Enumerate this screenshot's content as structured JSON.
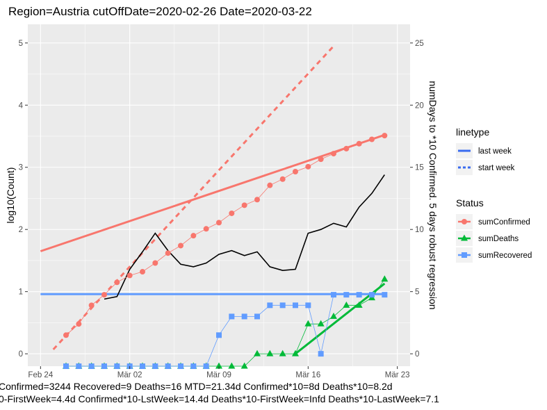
{
  "chart_data": {
    "type": "line",
    "title": "Region=Austria cutOffDate=2020-02-26 Date=2020-03-22",
    "ylabel": "log10(Count)",
    "y2label": "numDays to *10 Confirmed. 5 days robust regression",
    "ylim": [
      -0.2,
      5.3
    ],
    "y2lim": [
      0,
      25
    ],
    "yticks": [
      "0",
      "1",
      "2",
      "3",
      "4",
      "5"
    ],
    "y2ticks": [
      "0",
      "5",
      "10",
      "15",
      "20",
      "25"
    ],
    "xticks": [
      {
        "date": "2020-02-24",
        "label": "Feb 24"
      },
      {
        "date": "2020-03-02",
        "label": "Mär 02"
      },
      {
        "date": "2020-03-09",
        "label": "Mär 09"
      },
      {
        "date": "2020-03-16",
        "label": "Mär 16"
      },
      {
        "date": "2020-03-23",
        "label": "Mär 23"
      }
    ],
    "xlim": [
      "2020-02-23",
      "2020-03-24"
    ],
    "grid": true,
    "colors": {
      "confirmed": "#f8766d",
      "deaths": "#00ba38",
      "recovered": "#619cff",
      "numdays": "#000000",
      "panel": "#ebebeb",
      "grid": "#ffffff"
    },
    "series": [
      {
        "name": "sumConfirmed",
        "marker": "circle",
        "color": "#f8766d",
        "x": [
          "2020-02-26",
          "2020-02-27",
          "2020-02-28",
          "2020-02-29",
          "2020-03-01",
          "2020-03-02",
          "2020-03-03",
          "2020-03-04",
          "2020-03-05",
          "2020-03-06",
          "2020-03-07",
          "2020-03-08",
          "2020-03-09",
          "2020-03-10",
          "2020-03-11",
          "2020-03-12",
          "2020-03-13",
          "2020-03-14",
          "2020-03-15",
          "2020-03-16",
          "2020-03-17",
          "2020-03-18",
          "2020-03-19",
          "2020-03-20",
          "2020-03-21",
          "2020-03-22"
        ],
        "y": [
          0.3,
          0.48,
          0.78,
          0.95,
          1.15,
          1.26,
          1.32,
          1.46,
          1.62,
          1.74,
          1.9,
          2.01,
          2.11,
          2.26,
          2.39,
          2.48,
          2.71,
          2.81,
          2.93,
          3.01,
          3.13,
          3.22,
          3.3,
          3.38,
          3.45,
          3.51
        ]
      },
      {
        "name": "sumDeaths",
        "marker": "triangle",
        "color": "#00ba38",
        "x": [
          "2020-02-26",
          "2020-02-27",
          "2020-02-28",
          "2020-02-29",
          "2020-03-01",
          "2020-03-02",
          "2020-03-03",
          "2020-03-04",
          "2020-03-05",
          "2020-03-06",
          "2020-03-07",
          "2020-03-08",
          "2020-03-09",
          "2020-03-10",
          "2020-03-11",
          "2020-03-12",
          "2020-03-13",
          "2020-03-14",
          "2020-03-15",
          "2020-03-16",
          "2020-03-17",
          "2020-03-18",
          "2020-03-19",
          "2020-03-20",
          "2020-03-21",
          "2020-03-22"
        ],
        "y": [
          -0.2,
          -0.2,
          -0.2,
          -0.2,
          -0.2,
          -0.2,
          -0.2,
          -0.2,
          -0.2,
          -0.2,
          -0.2,
          -0.2,
          -0.2,
          -0.2,
          -0.2,
          0.0,
          0.0,
          0.0,
          0.0,
          0.48,
          0.48,
          0.6,
          0.78,
          0.78,
          0.9,
          1.2
        ]
      },
      {
        "name": "sumRecovered",
        "marker": "square",
        "color": "#619cff",
        "x": [
          "2020-02-26",
          "2020-02-27",
          "2020-02-28",
          "2020-02-29",
          "2020-03-01",
          "2020-03-02",
          "2020-03-03",
          "2020-03-04",
          "2020-03-05",
          "2020-03-06",
          "2020-03-07",
          "2020-03-08",
          "2020-03-09",
          "2020-03-10",
          "2020-03-11",
          "2020-03-12",
          "2020-03-13",
          "2020-03-14",
          "2020-03-15",
          "2020-03-16",
          "2020-03-17",
          "2020-03-18",
          "2020-03-19",
          "2020-03-20",
          "2020-03-21",
          "2020-03-22"
        ],
        "y": [
          -0.2,
          -0.2,
          -0.2,
          -0.2,
          -0.2,
          -0.2,
          -0.2,
          -0.2,
          -0.2,
          -0.2,
          -0.2,
          -0.2,
          0.3,
          0.6,
          0.6,
          0.6,
          0.78,
          0.78,
          0.78,
          0.78,
          0.0,
          0.95,
          0.95,
          0.95,
          0.95,
          0.95
        ]
      }
    ],
    "numDays": {
      "color": "#000000",
      "axis": "secondary",
      "x": [
        "2020-02-29",
        "2020-03-01",
        "2020-03-02",
        "2020-03-03",
        "2020-03-04",
        "2020-03-05",
        "2020-03-06",
        "2020-03-07",
        "2020-03-08",
        "2020-03-09",
        "2020-03-10",
        "2020-03-11",
        "2020-03-12",
        "2020-03-13",
        "2020-03-14",
        "2020-03-15",
        "2020-03-16",
        "2020-03-17",
        "2020-03-18",
        "2020-03-19",
        "2020-03-20",
        "2020-03-21",
        "2020-03-22"
      ],
      "y": [
        4.4,
        4.6,
        6.8,
        8.2,
        9.7,
        8.3,
        7.2,
        7.0,
        7.3,
        8.0,
        8.3,
        7.9,
        8.2,
        7.0,
        6.7,
        6.8,
        9.7,
        10.0,
        10.5,
        10.2,
        11.8,
        12.9,
        14.4
      ]
    },
    "fit_lines": [
      {
        "series": "sumConfirmed",
        "linetype": "last week",
        "x": [
          "2020-02-24",
          "2020-03-22"
        ],
        "y": [
          1.65,
          3.52
        ]
      },
      {
        "series": "sumConfirmed",
        "linetype": "start week",
        "x": [
          "2020-02-25",
          "2020-03-18"
        ],
        "y": [
          0.07,
          4.95
        ]
      },
      {
        "series": "sumRecovered",
        "linetype": "last week",
        "x": [
          "2020-02-24",
          "2020-03-22"
        ],
        "y": [
          0.96,
          0.96
        ]
      },
      {
        "series": "sumDeaths",
        "linetype": "last week",
        "x": [
          "2020-03-15",
          "2020-03-22"
        ],
        "y": [
          0.0,
          1.13
        ]
      }
    ],
    "legend": {
      "placement": "right",
      "linetype_title": "linetype",
      "linetype_items": [
        {
          "label": "last week",
          "dash": "solid"
        },
        {
          "label": "start week",
          "dash": "dashed"
        }
      ],
      "status_title": "Status",
      "status_items": [
        {
          "label": "sumConfirmed",
          "color": "#f8766d",
          "marker": "circle"
        },
        {
          "label": "sumDeaths",
          "color": "#00ba38",
          "marker": "triangle"
        },
        {
          "label": "sumRecovered",
          "color": "#619cff",
          "marker": "square"
        }
      ]
    },
    "caption_lines": [
      "Confirmed=3244 Recovered=9 Deaths=16  MTD=21.34d   Confirmed*10=8d  Deaths*10=8.2d",
      "0-FirstWeek=4.4d  Confirmed*10-LstWeek=14.4d    Deaths*10-FirstWeek=Infd  Deaths*10-LastWeek=7.1"
    ]
  }
}
